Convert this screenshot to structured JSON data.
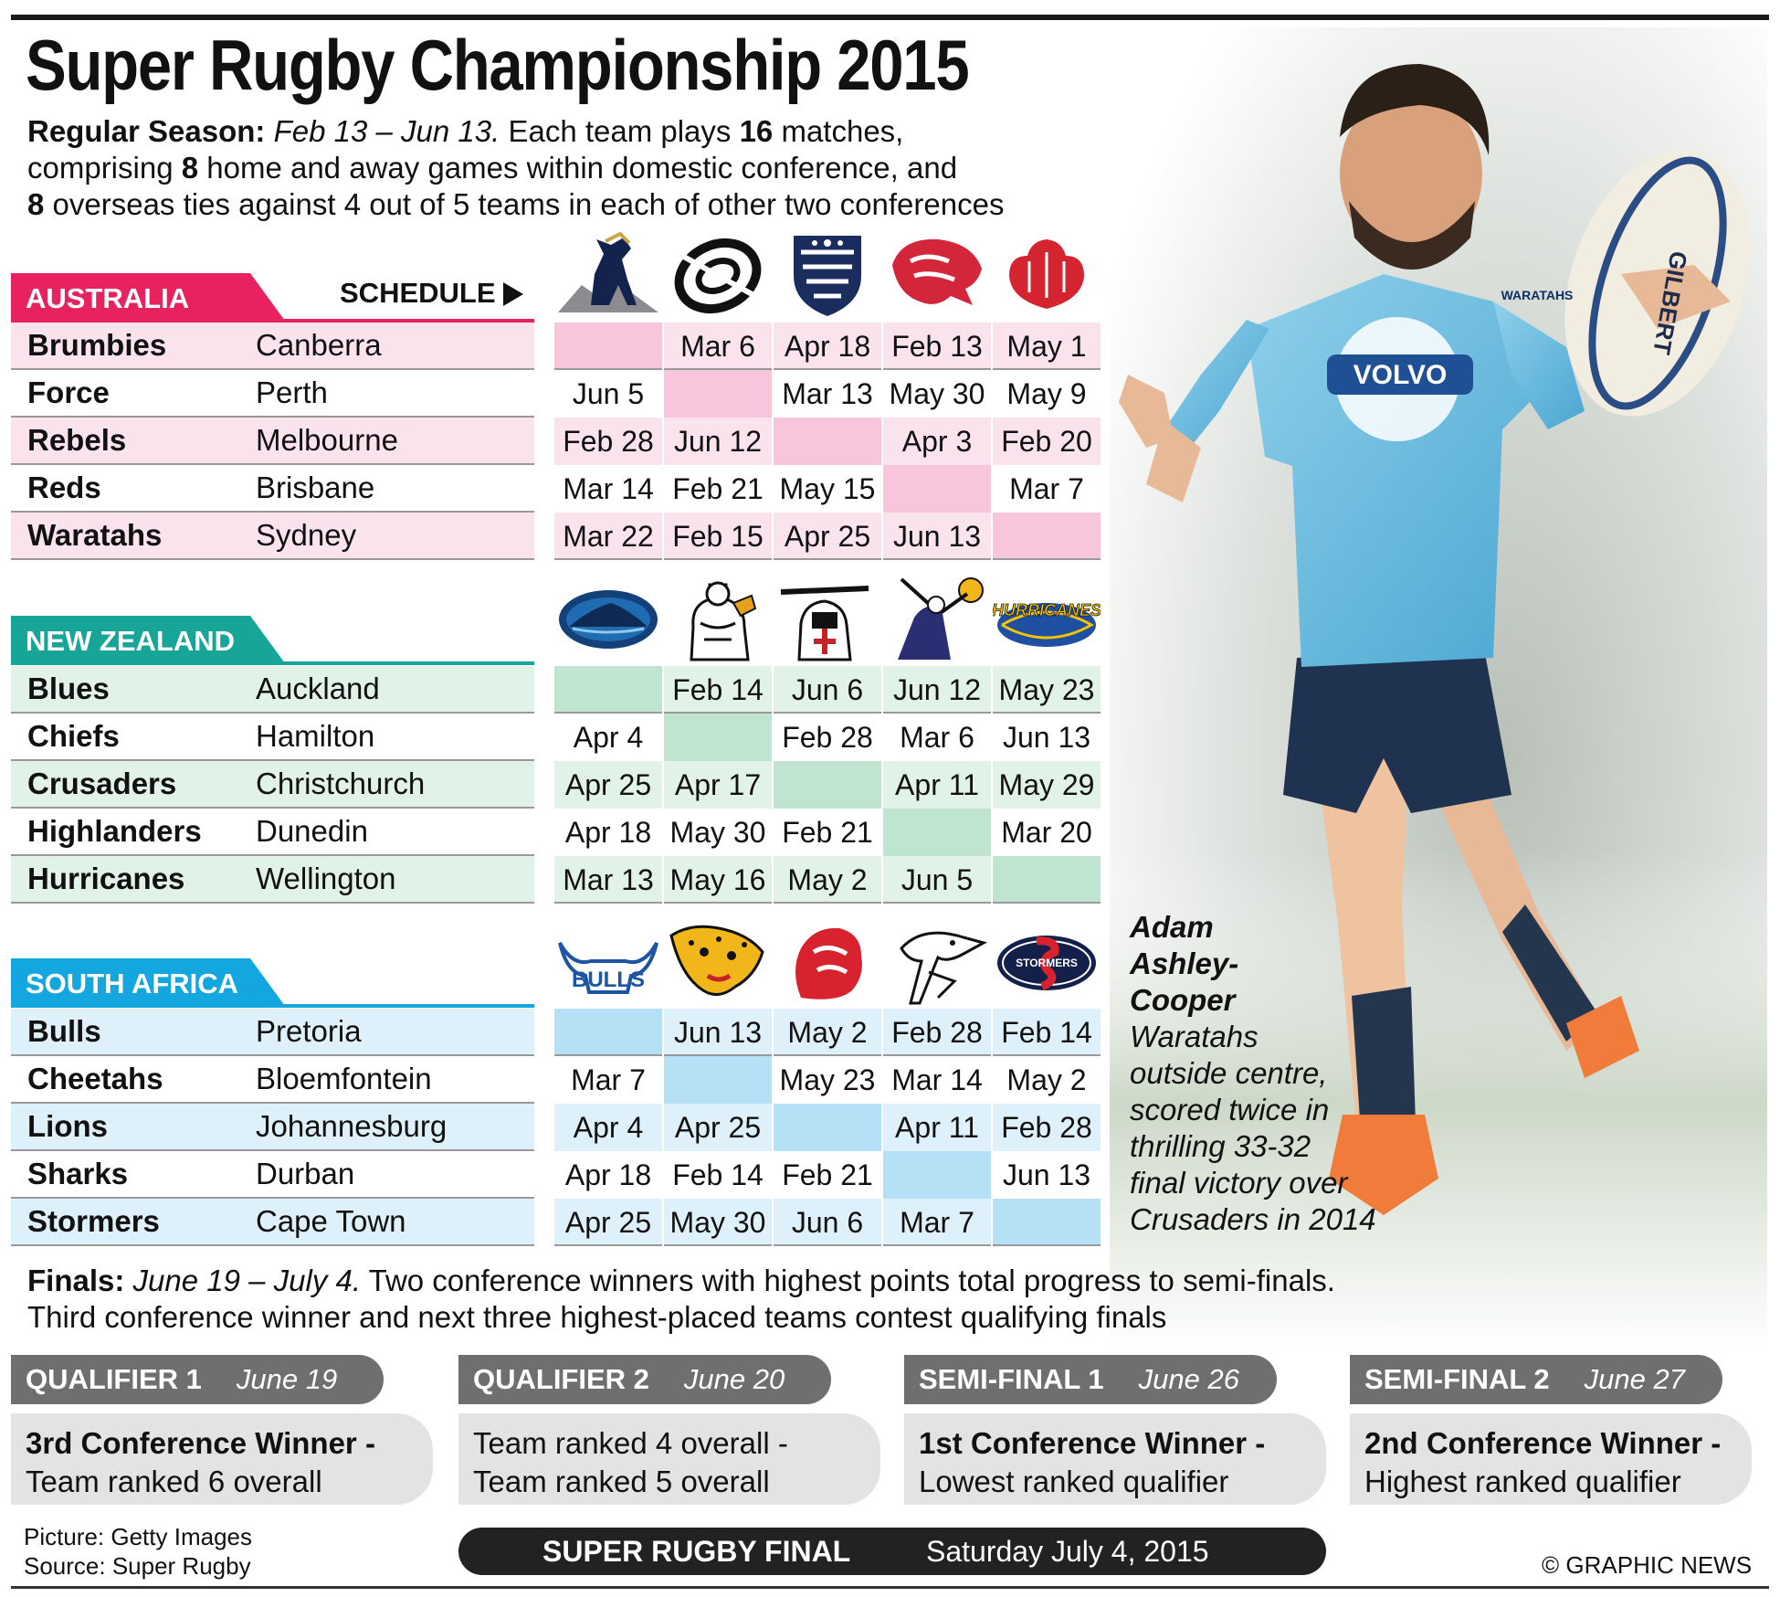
{
  "title": "Super Rugby Championship 2015",
  "intro": {
    "label": "Regular Season:",
    "dates": "Feb 13 – Jun 13.",
    "p1": " Each team plays ",
    "n16": "16",
    "p2": " matches,",
    "p3": "comprising ",
    "n8a": "8",
    "p4": " home and away games within domestic conference, and",
    "n8b": "8",
    "p5": " overseas ties against 4 out of 5 teams in each of other two conferences"
  },
  "schedule_label": "SCHEDULE",
  "conferences": [
    {
      "name": "AUSTRALIA",
      "teams": [
        {
          "name": "Brumbies",
          "city": "Canberra"
        },
        {
          "name": "Force",
          "city": "Perth"
        },
        {
          "name": "Rebels",
          "city": "Melbourne"
        },
        {
          "name": "Reds",
          "city": "Brisbane"
        },
        {
          "name": "Waratahs",
          "city": "Sydney"
        }
      ],
      "logos": [
        "brumbies-logo",
        "force-logo",
        "rebels-logo",
        "reds-logo",
        "waratahs-logo"
      ],
      "schedule": [
        [
          "",
          "Mar 6",
          "Apr 18",
          "Feb 13",
          "May 1"
        ],
        [
          "Jun 5",
          "",
          "Mar 13",
          "May 30",
          "May 9"
        ],
        [
          "Feb 28",
          "Jun 12",
          "",
          "Apr 3",
          "Feb 20"
        ],
        [
          "Mar 14",
          "Feb 21",
          "May 15",
          "",
          "Mar 7"
        ],
        [
          "Mar 22",
          "Feb 15",
          "Apr 25",
          "Jun 13",
          ""
        ]
      ]
    },
    {
      "name": "NEW ZEALAND",
      "teams": [
        {
          "name": "Blues",
          "city": "Auckland"
        },
        {
          "name": "Chiefs",
          "city": "Hamilton"
        },
        {
          "name": "Crusaders",
          "city": "Christchurch"
        },
        {
          "name": "Highlanders",
          "city": "Dunedin"
        },
        {
          "name": "Hurricanes",
          "city": "Wellington"
        }
      ],
      "logos": [
        "blues-logo",
        "chiefs-logo",
        "crusaders-logo",
        "highlanders-logo",
        "hurricanes-logo"
      ],
      "schedule": [
        [
          "",
          "Feb 14",
          "Jun 6",
          "Jun 12",
          "May 23"
        ],
        [
          "Apr 4",
          "",
          "Feb 28",
          "Mar 6",
          "Jun 13"
        ],
        [
          "Apr 25",
          "Apr 17",
          "",
          "Apr 11",
          "May 29"
        ],
        [
          "Apr 18",
          "May 30",
          "Feb 21",
          "",
          "Mar 20"
        ],
        [
          "Mar 13",
          "May 16",
          "May 2",
          "Jun 5",
          ""
        ]
      ]
    },
    {
      "name": "SOUTH AFRICA",
      "teams": [
        {
          "name": "Bulls",
          "city": "Pretoria"
        },
        {
          "name": "Cheetahs",
          "city": "Bloemfontein"
        },
        {
          "name": "Lions",
          "city": "Johannesburg"
        },
        {
          "name": "Sharks",
          "city": "Durban"
        },
        {
          "name": "Stormers",
          "city": "Cape Town"
        }
      ],
      "logos": [
        "bulls-logo",
        "cheetahs-logo",
        "lions-logo",
        "sharks-logo",
        "stormers-logo"
      ],
      "schedule": [
        [
          "",
          "Jun 13",
          "May 2",
          "Feb 28",
          "Feb 14"
        ],
        [
          "Mar 7",
          "",
          "May 23",
          "Mar 14",
          "May 2"
        ],
        [
          "Apr 4",
          "Apr 25",
          "",
          "Apr 11",
          "Feb 28"
        ],
        [
          "Apr 18",
          "Feb 14",
          "Feb 21",
          "",
          "Jun 13"
        ],
        [
          "Apr 25",
          "May 30",
          "Jun 6",
          "Mar 7",
          ""
        ]
      ]
    }
  ],
  "logo_text": {
    "bulls": "BULLS",
    "hurricanes": "HURRICANES",
    "stormers": "STORMERS"
  },
  "colors": {
    "australia": "#e8215f",
    "australia_fill": "#f8c5dc",
    "australia_row": "#fbe3ee",
    "nz": "#16a596",
    "nz_fill": "#bfe5d0",
    "nz_row": "#e1f2e8",
    "sa": "#14a6df",
    "sa_fill": "#b6e0f6",
    "sa_row": "#def0fa"
  },
  "caption": {
    "name": [
      "Adam",
      "Ashley-",
      "Cooper"
    ],
    "lines": [
      "Waratahs",
      "outside centre,",
      "scored twice in",
      "thrilling 33-32",
      "final victory over",
      "Crusaders in 2014"
    ]
  },
  "finals": {
    "label": "Finals:",
    "dates": "June 19 – July 4.",
    "line1": " Two conference winners with highest points total progress to semi-finals.",
    "line2": "Third conference winner and next three highest-placed teams contest qualifying finals"
  },
  "stages": [
    {
      "name": "QUALIFIER 1",
      "date": "June 19",
      "line1": "3rd Conference Winner -",
      "line2": "Team ranked 6 overall",
      "bold_first": true
    },
    {
      "name": "QUALIFIER 2",
      "date": "June 20",
      "line1": "Team ranked 4 overall -",
      "line2": "Team ranked 5 overall",
      "bold_first": false
    },
    {
      "name": "SEMI-FINAL 1",
      "date": "June 26",
      "line1": "1st Conference Winner -",
      "line2": "Lowest ranked qualifier",
      "bold_first": true
    },
    {
      "name": "SEMI-FINAL 2",
      "date": "June 27",
      "line1": "2nd Conference Winner -",
      "line2": "Highest ranked qualifier",
      "bold_first": true
    }
  ],
  "final": {
    "label": "SUPER RUGBY FINAL",
    "date": "Saturday July 4, 2015"
  },
  "credits": {
    "picture": "Picture: Getty Images",
    "source": "Source: Super Rugby"
  },
  "copyright": "© GRAPHIC NEWS",
  "jersey": {
    "sponsor": "VOLVO",
    "team": "WARATAHS",
    "ball": "GILBERT"
  }
}
